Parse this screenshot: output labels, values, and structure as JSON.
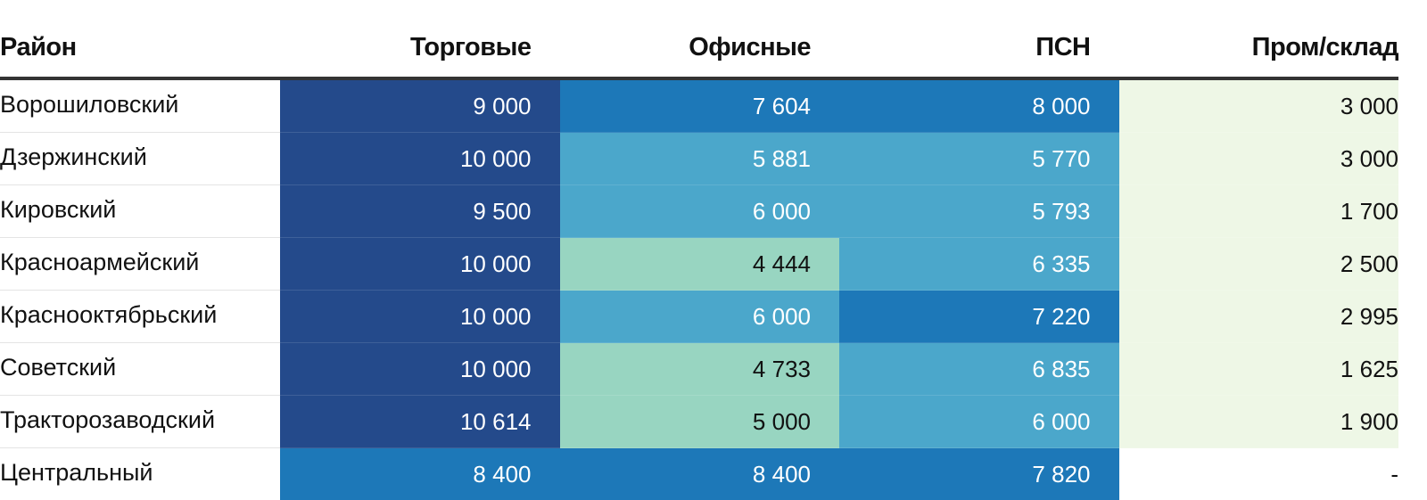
{
  "chart_data": {
    "type": "table",
    "title": "",
    "columns": [
      "Район",
      "Торговые",
      "Офисные",
      "ПСН",
      "Пром/склад"
    ],
    "rows": [
      {
        "district": "Ворошиловский",
        "values": [
          "9 000",
          "7 604",
          "8 000",
          "3 000"
        ],
        "numeric": [
          9000,
          7604,
          8000,
          3000
        ]
      },
      {
        "district": "Дзержинский",
        "values": [
          "10 000",
          "5 881",
          "5 770",
          "3 000"
        ],
        "numeric": [
          10000,
          5881,
          5770,
          3000
        ]
      },
      {
        "district": "Кировский",
        "values": [
          "9 500",
          "6 000",
          "5 793",
          "1 700"
        ],
        "numeric": [
          9500,
          6000,
          5793,
          1700
        ]
      },
      {
        "district": "Красноармейский",
        "values": [
          "10 000",
          "4 444",
          "6 335",
          "2 500"
        ],
        "numeric": [
          10000,
          4444,
          6335,
          2500
        ]
      },
      {
        "district": "Краснооктябрьский",
        "values": [
          "10 000",
          "6 000",
          "7 220",
          "2 995"
        ],
        "numeric": [
          10000,
          6000,
          7220,
          2995
        ]
      },
      {
        "district": "Советский",
        "values": [
          "10 000",
          "4 733",
          "6 835",
          "1 625"
        ],
        "numeric": [
          10000,
          4733,
          6835,
          1625
        ]
      },
      {
        "district": "Тракторозаводский",
        "values": [
          "10 614",
          "5 000",
          "6 000",
          "1 900"
        ],
        "numeric": [
          10614,
          5000,
          6000,
          1900
        ]
      },
      {
        "district": "Центральный",
        "values": [
          "8 400",
          "8 400",
          "7 820",
          "-"
        ],
        "numeric": [
          8400,
          8400,
          7820,
          null
        ]
      }
    ],
    "color_scale": {
      "bins": [
        {
          "min": 0,
          "max": 3999,
          "bg": "#eef7e6",
          "text": "#111111"
        },
        {
          "min": 4000,
          "max": 5499,
          "bg": "#98d5c1",
          "text": "#111111"
        },
        {
          "min": 5500,
          "max": 6999,
          "bg": "#4ba7cb",
          "text": "#ffffff"
        },
        {
          "min": 7000,
          "max": 8999,
          "bg": "#1d78b8",
          "text": "#ffffff"
        },
        {
          "min": 9000,
          "max": 99999,
          "bg": "#244a8b",
          "text": "#ffffff"
        }
      ],
      "empty_bg": "#ffffff",
      "empty_text": "#111111"
    }
  }
}
